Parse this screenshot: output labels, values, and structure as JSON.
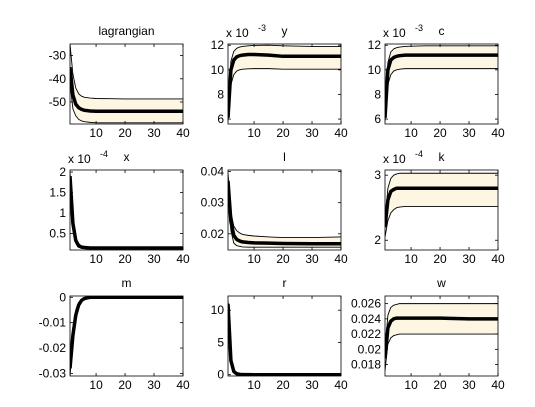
{
  "chart_data": [
    {
      "title": "lagrangian",
      "type": "line",
      "exponent": "",
      "xlim": [
        1,
        40
      ],
      "ylim": [
        -59.5,
        -25
      ],
      "xticks": [
        10,
        20,
        30,
        40
      ],
      "xticklabels": [
        "10",
        "20",
        "30",
        "40"
      ],
      "yticks": [
        -50,
        -40,
        -30
      ],
      "yticklabels": [
        "-50",
        "-40",
        "-30"
      ],
      "band_fill": "#fdf6e3",
      "series": [
        {
          "role": "upper",
          "x": [
            1,
            2,
            3,
            4,
            5,
            6,
            8,
            10,
            15,
            20,
            30,
            40
          ],
          "values": [
            -25,
            -38,
            -44,
            -46.5,
            -47.5,
            -48,
            -48.3,
            -48.5,
            -48.6,
            -48.7,
            -48.7,
            -48.7
          ]
        },
        {
          "role": "mean",
          "x": [
            1,
            2,
            3,
            4,
            5,
            6,
            8,
            10,
            15,
            20,
            30,
            40
          ],
          "values": [
            -35,
            -47,
            -51,
            -52.5,
            -53.2,
            -53.6,
            -53.9,
            -54,
            -54,
            -54,
            -54,
            -54
          ]
        },
        {
          "role": "lower",
          "x": [
            1,
            2,
            3,
            4,
            5,
            6,
            8,
            10,
            15,
            20,
            30,
            40
          ],
          "values": [
            -42,
            -53,
            -56,
            -57.5,
            -58.2,
            -58.5,
            -58.8,
            -59,
            -59,
            -59,
            -59,
            -59
          ]
        }
      ]
    },
    {
      "title": "y",
      "type": "line",
      "exponent": "-3",
      "xlim": [
        1,
        40
      ],
      "ylim": [
        5.6,
        12.1
      ],
      "xticks": [
        10,
        20,
        30,
        40
      ],
      "xticklabels": [
        "10",
        "20",
        "30",
        "40"
      ],
      "yticks": [
        6,
        8,
        10,
        12
      ],
      "yticklabels": [
        "6",
        "8",
        "10",
        "12"
      ],
      "band_fill": "#fdf6e3",
      "series": [
        {
          "role": "upper",
          "x": [
            1,
            2,
            3,
            4,
            5,
            6,
            8,
            10,
            15,
            20,
            30,
            40
          ],
          "values": [
            6.6,
            10.7,
            11.5,
            11.75,
            11.85,
            11.9,
            11.95,
            11.98,
            12,
            11.95,
            11.9,
            11.9
          ]
        },
        {
          "role": "mean",
          "x": [
            1,
            2,
            3,
            4,
            5,
            6,
            8,
            10,
            15,
            20,
            30,
            40
          ],
          "values": [
            6.1,
            10,
            10.8,
            11.05,
            11.15,
            11.2,
            11.25,
            11.25,
            11.2,
            11.1,
            11.1,
            11.1
          ]
        },
        {
          "role": "lower",
          "x": [
            1,
            2,
            3,
            4,
            5,
            6,
            8,
            10,
            15,
            20,
            30,
            40
          ],
          "values": [
            5.8,
            8.8,
            9.6,
            9.9,
            10,
            10.05,
            10.08,
            10.1,
            10.1,
            10.05,
            10.05,
            10.05
          ]
        }
      ]
    },
    {
      "title": "c",
      "type": "line",
      "exponent": "-3",
      "xlim": [
        1,
        40
      ],
      "ylim": [
        5.6,
        12.1
      ],
      "xticks": [
        10,
        20,
        30,
        40
      ],
      "xticklabels": [
        "10",
        "20",
        "30",
        "40"
      ],
      "yticks": [
        6,
        8,
        10,
        12
      ],
      "yticklabels": [
        "6",
        "8",
        "10",
        "12"
      ],
      "band_fill": "#fdf6e3",
      "series": [
        {
          "role": "upper",
          "x": [
            1,
            2,
            3,
            4,
            5,
            6,
            8,
            10,
            15,
            20,
            30,
            40
          ],
          "values": [
            6.6,
            10.6,
            11.45,
            11.7,
            11.8,
            11.85,
            11.9,
            11.92,
            11.95,
            11.95,
            11.95,
            11.95
          ]
        },
        {
          "role": "mean",
          "x": [
            1,
            2,
            3,
            4,
            5,
            6,
            8,
            10,
            15,
            20,
            30,
            40
          ],
          "values": [
            6.1,
            10,
            10.8,
            11,
            11.1,
            11.15,
            11.2,
            11.2,
            11.2,
            11.2,
            11.2,
            11.2
          ]
        },
        {
          "role": "lower",
          "x": [
            1,
            2,
            3,
            4,
            5,
            6,
            8,
            10,
            15,
            20,
            30,
            40
          ],
          "values": [
            5.8,
            8.8,
            9.6,
            9.9,
            10,
            10.05,
            10.1,
            10.1,
            10.1,
            10.1,
            10.1,
            10.1
          ]
        }
      ]
    },
    {
      "title": "x",
      "type": "line",
      "exponent": "-4",
      "xlim": [
        1,
        40
      ],
      "ylim": [
        0.1,
        2.05
      ],
      "xticks": [
        10,
        20,
        30,
        40
      ],
      "xticklabels": [
        "10",
        "20",
        "30",
        "40"
      ],
      "yticks": [
        0.5,
        1,
        1.5,
        2
      ],
      "yticklabels": [
        "0.5",
        "1",
        "1.5",
        "2"
      ],
      "band_fill": "#fdf6e3",
      "series": [
        {
          "role": "upper",
          "x": [
            1,
            2,
            3,
            4,
            5,
            6,
            8,
            10,
            15,
            20,
            30,
            40
          ],
          "values": [
            2.0,
            0.9,
            0.4,
            0.25,
            0.2,
            0.18,
            0.17,
            0.17,
            0.17,
            0.17,
            0.17,
            0.17
          ]
        },
        {
          "role": "mean",
          "x": [
            1,
            2,
            3,
            4,
            5,
            6,
            8,
            10,
            15,
            20,
            30,
            40
          ],
          "values": [
            1.9,
            0.75,
            0.33,
            0.2,
            0.17,
            0.16,
            0.15,
            0.15,
            0.15,
            0.15,
            0.15,
            0.15
          ]
        },
        {
          "role": "lower",
          "x": [
            1,
            2,
            3,
            4,
            5,
            6,
            8,
            10,
            15,
            20,
            30,
            40
          ],
          "values": [
            1.75,
            0.6,
            0.27,
            0.17,
            0.15,
            0.14,
            0.14,
            0.14,
            0.14,
            0.14,
            0.14,
            0.14
          ]
        }
      ]
    },
    {
      "title": "l",
      "type": "line",
      "exponent": "",
      "xlim": [
        1,
        40
      ],
      "ylim": [
        0.0148,
        0.0405
      ],
      "xticks": [
        10,
        20,
        30,
        40
      ],
      "xticklabels": [
        "10",
        "20",
        "30",
        "40"
      ],
      "yticks": [
        0.02,
        0.03,
        0.04
      ],
      "yticklabels": [
        "0.02",
        "0.03",
        "0.04"
      ],
      "band_fill": "#fdf6e3",
      "series": [
        {
          "role": "upper",
          "x": [
            1,
            2,
            3,
            4,
            5,
            6,
            8,
            10,
            15,
            20,
            30,
            40
          ],
          "values": [
            0.0395,
            0.027,
            0.0225,
            0.021,
            0.0203,
            0.0198,
            0.0195,
            0.0193,
            0.019,
            0.0188,
            0.0188,
            0.019
          ]
        },
        {
          "role": "mean",
          "x": [
            1,
            2,
            3,
            4,
            5,
            6,
            8,
            10,
            15,
            20,
            30,
            40
          ],
          "values": [
            0.037,
            0.024,
            0.0195,
            0.0182,
            0.0177,
            0.0174,
            0.0172,
            0.0171,
            0.017,
            0.0169,
            0.0168,
            0.0168
          ]
        },
        {
          "role": "lower",
          "x": [
            1,
            2,
            3,
            4,
            5,
            6,
            8,
            10,
            15,
            20,
            30,
            40
          ],
          "values": [
            0.033,
            0.021,
            0.017,
            0.0162,
            0.016,
            0.0158,
            0.0157,
            0.0157,
            0.0157,
            0.0157,
            0.0157,
            0.0157
          ]
        }
      ]
    },
    {
      "title": "k",
      "type": "line",
      "exponent": "-4",
      "xlim": [
        1,
        40
      ],
      "ylim": [
        1.85,
        3.08
      ],
      "xticks": [
        10,
        20,
        30,
        40
      ],
      "xticklabels": [
        "10",
        "20",
        "30",
        "40"
      ],
      "yticks": [
        2,
        3
      ],
      "yticklabels": [
        "2",
        "3"
      ],
      "band_fill": "#fdf6e3",
      "series": [
        {
          "role": "upper",
          "x": [
            1,
            2,
            3,
            4,
            5,
            6,
            8,
            10,
            15,
            20,
            30,
            40
          ],
          "values": [
            2.3,
            2.8,
            2.95,
            3.0,
            3.02,
            3.03,
            3.03,
            3.03,
            3.03,
            3.03,
            3.03,
            3.03
          ]
        },
        {
          "role": "mean",
          "x": [
            1,
            2,
            3,
            4,
            5,
            6,
            8,
            10,
            15,
            20,
            30,
            40
          ],
          "values": [
            2.2,
            2.62,
            2.75,
            2.78,
            2.8,
            2.8,
            2.8,
            2.8,
            2.8,
            2.8,
            2.8,
            2.8
          ]
        },
        {
          "role": "lower",
          "x": [
            1,
            2,
            3,
            4,
            5,
            6,
            8,
            10,
            15,
            20,
            30,
            40
          ],
          "values": [
            2.05,
            2.3,
            2.42,
            2.47,
            2.5,
            2.51,
            2.52,
            2.52,
            2.52,
            2.52,
            2.52,
            2.52
          ]
        }
      ]
    },
    {
      "title": "m",
      "type": "line",
      "exponent": "",
      "xlim": [
        1,
        40
      ],
      "ylim": [
        -0.031,
        0.0005
      ],
      "xticks": [
        10,
        20,
        30,
        40
      ],
      "xticklabels": [
        "10",
        "20",
        "30",
        "40"
      ],
      "yticks": [
        -0.03,
        -0.02,
        -0.01,
        0
      ],
      "yticklabels": [
        "-0.03",
        "-0.02",
        "-0.01",
        "0"
      ],
      "band_fill": "#fdf6e3",
      "series": [
        {
          "role": "upper",
          "x": [
            1,
            2,
            3,
            4,
            5,
            6,
            7,
            8,
            10,
            15,
            20,
            30,
            40
          ],
          "values": [
            -0.024,
            -0.012,
            -0.005,
            -0.002,
            -0.0008,
            -0.0003,
            -0.0001,
            0,
            0,
            0,
            0,
            0,
            0
          ]
        },
        {
          "role": "mean",
          "x": [
            1,
            2,
            3,
            4,
            5,
            6,
            7,
            8,
            10,
            15,
            20,
            30,
            40
          ],
          "values": [
            -0.028,
            -0.015,
            -0.007,
            -0.003,
            -0.0012,
            -0.0005,
            -0.0002,
            0,
            0,
            0,
            0,
            0,
            0
          ]
        },
        {
          "role": "lower",
          "x": [
            1,
            2,
            3,
            4,
            5,
            6,
            7,
            8,
            10,
            15,
            20,
            30,
            40
          ],
          "values": [
            -0.031,
            -0.018,
            -0.009,
            -0.004,
            -0.0018,
            -0.0008,
            -0.0003,
            -0.0001,
            0,
            0,
            0,
            0,
            0
          ]
        }
      ]
    },
    {
      "title": "r",
      "type": "line",
      "exponent": "",
      "xlim": [
        1,
        40
      ],
      "ylim": [
        -0.2,
        12.2
      ],
      "xticks": [
        10,
        20,
        30,
        40
      ],
      "xticklabels": [
        "10",
        "20",
        "30",
        "40"
      ],
      "yticks": [
        0,
        5,
        10
      ],
      "yticklabels": [
        "0",
        "5",
        "10"
      ],
      "band_fill": "#fdf6e3",
      "series": [
        {
          "role": "upper",
          "x": [
            1,
            2,
            3,
            4,
            5,
            6,
            8,
            10,
            15,
            20,
            30,
            40
          ],
          "values": [
            11.5,
            2.6,
            0.7,
            0.25,
            0.1,
            0.05,
            0.02,
            0.01,
            0.01,
            0.01,
            0.01,
            0.01
          ]
        },
        {
          "role": "mean",
          "x": [
            1,
            2,
            3,
            4,
            5,
            6,
            8,
            10,
            15,
            20,
            30,
            40
          ],
          "values": [
            11,
            2.2,
            0.5,
            0.15,
            0.05,
            0.02,
            0.01,
            0,
            0,
            0,
            0,
            0
          ]
        },
        {
          "role": "lower",
          "x": [
            1,
            2,
            3,
            4,
            5,
            6,
            8,
            10,
            15,
            20,
            30,
            40
          ],
          "values": [
            10.3,
            1.8,
            0.35,
            0.08,
            0.02,
            0.01,
            0,
            0,
            0,
            0,
            0,
            0
          ]
        }
      ]
    },
    {
      "title": "w",
      "type": "line",
      "exponent": "",
      "xlim": [
        1,
        40
      ],
      "ylim": [
        0.0165,
        0.027
      ],
      "xticks": [
        10,
        20,
        30,
        40
      ],
      "xticklabels": [
        "10",
        "20",
        "30",
        "40"
      ],
      "yticks": [
        0.018,
        0.02,
        0.022,
        0.024,
        0.026
      ],
      "yticklabels": [
        "0.018",
        "0.02",
        "0.022",
        "0.024",
        "0.026"
      ],
      "band_fill": "#fdf6e3",
      "series": [
        {
          "role": "upper",
          "x": [
            1,
            2,
            3,
            4,
            5,
            6,
            8,
            10,
            15,
            20,
            30,
            40
          ],
          "values": [
            0.0198,
            0.0245,
            0.0255,
            0.0258,
            0.0259,
            0.026,
            0.026,
            0.026,
            0.026,
            0.026,
            0.026,
            0.026
          ]
        },
        {
          "role": "mean",
          "x": [
            1,
            2,
            3,
            4,
            5,
            6,
            8,
            10,
            15,
            20,
            30,
            40
          ],
          "values": [
            0.0188,
            0.0228,
            0.0237,
            0.024,
            0.0241,
            0.0241,
            0.0241,
            0.0241,
            0.0241,
            0.0241,
            0.024,
            0.024
          ]
        },
        {
          "role": "lower",
          "x": [
            1,
            2,
            3,
            4,
            5,
            6,
            8,
            10,
            15,
            20,
            30,
            40
          ],
          "values": [
            0.0172,
            0.0207,
            0.0215,
            0.0218,
            0.0219,
            0.022,
            0.022,
            0.022,
            0.022,
            0.022,
            0.022,
            0.022
          ]
        }
      ]
    }
  ]
}
